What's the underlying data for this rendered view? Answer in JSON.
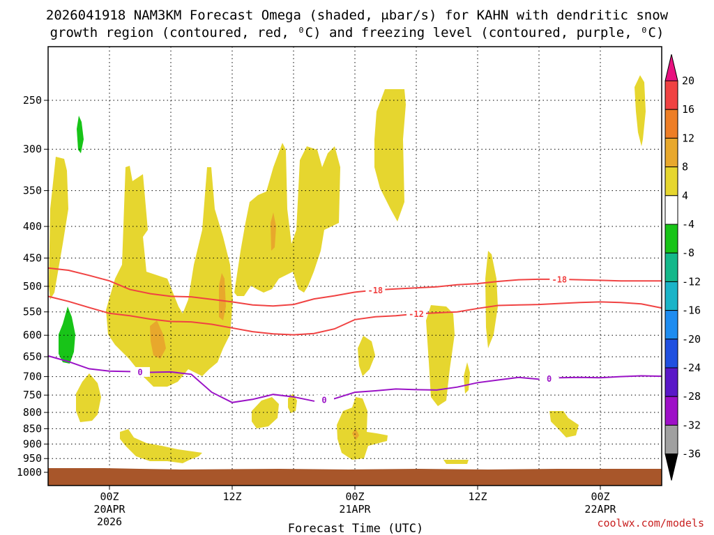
{
  "chart_data": {
    "type": "heatmap",
    "title_line1": "2026041918 NAM3KM Forecast Omega (shaded, μbar/s) for KAHN with dendritic snow",
    "title_line2": "growth region (contoured, red, ⁰C) and freezing level (contoured, purple, ⁰C)",
    "xlabel": "Forecast Time (UTC)",
    "credit": "coolwx.com/models",
    "x_range_hours": [
      -6,
      54
    ],
    "y_levels_hpa": [
      1000,
      950,
      900,
      850,
      800,
      750,
      700,
      650,
      600,
      550,
      500,
      450,
      400,
      350,
      300,
      250
    ],
    "x_ticks": [
      {
        "hour": 0,
        "line1": "00Z",
        "line2": "20APR",
        "line3": "2026"
      },
      {
        "hour": 12,
        "line1": "12Z",
        "line2": "",
        "line3": ""
      },
      {
        "hour": 24,
        "line1": "00Z",
        "line2": "21APR",
        "line3": ""
      },
      {
        "hour": 36,
        "line1": "12Z",
        "line2": "",
        "line3": ""
      },
      {
        "hour": 48,
        "line1": "00Z",
        "line2": "22APR",
        "line3": ""
      }
    ],
    "colorbar": {
      "labels": [
        "20",
        "16",
        "12",
        "8",
        "4",
        "-4",
        "-8",
        "-12",
        "-16",
        "-20",
        "-24",
        "-28",
        "-32",
        "-36"
      ],
      "colors": [
        "#e8117f",
        "#f04242",
        "#ee7e26",
        "#e8a82c",
        "#e6d62f",
        "#ffffff",
        "#18c418",
        "#14b88a",
        "#1ab4c8",
        "#1e8cf0",
        "#2050e0",
        "#5a18c8",
        "#9e10c8",
        "#a0a0a0",
        "#000000"
      ]
    },
    "contours": [
      {
        "name": "dgz-warm",
        "label": "-12",
        "color": "#f04242",
        "hours": [
          -6,
          -4,
          -2,
          0,
          2,
          4,
          6,
          8,
          10,
          12,
          14,
          16,
          18,
          20,
          22,
          24,
          26,
          28,
          30,
          32,
          34,
          36,
          38,
          40,
          42,
          44,
          46,
          48,
          50,
          52,
          54
        ],
        "pressure": [
          519,
          529,
          541,
          553,
          558,
          565,
          570,
          571,
          576,
          584,
          592,
          597,
          599,
          596,
          586,
          566,
          560,
          558,
          554,
          552,
          550,
          543,
          537,
          536,
          535,
          533,
          531,
          530,
          531,
          534,
          542
        ]
      },
      {
        "name": "dgz-cold",
        "label": "-18",
        "color": "#f04242",
        "hours": [
          -6,
          -4,
          -2,
          0,
          2,
          4,
          6,
          8,
          10,
          12,
          14,
          16,
          18,
          20,
          22,
          24,
          26,
          28,
          30,
          32,
          34,
          36,
          38,
          40,
          42,
          44,
          46,
          48,
          50,
          52,
          54
        ],
        "pressure": [
          467,
          471,
          480,
          490,
          506,
          514,
          519,
          520,
          525,
          530,
          536,
          538,
          535,
          524,
          518,
          511,
          507,
          505,
          503,
          501,
          497,
          495,
          491,
          488,
          487,
          487,
          488,
          489,
          490,
          490,
          490
        ]
      },
      {
        "name": "freezing-level",
        "label": "0",
        "color": "#9a12c6",
        "hours": [
          -6,
          -4,
          -2,
          0,
          2,
          4,
          6,
          8,
          10,
          12,
          14,
          16,
          18,
          20,
          22,
          24,
          26,
          28,
          30,
          32,
          34,
          36,
          38,
          40,
          42,
          44,
          46,
          48,
          50,
          52,
          54
        ],
        "pressure": [
          648,
          662,
          680,
          686,
          687,
          689,
          688,
          694,
          742,
          771,
          762,
          748,
          755,
          767,
          760,
          742,
          738,
          733,
          735,
          736,
          728,
          716,
          709,
          702,
          707,
          703,
          702,
          703,
          700,
          698,
          699
        ]
      }
    ]
  }
}
